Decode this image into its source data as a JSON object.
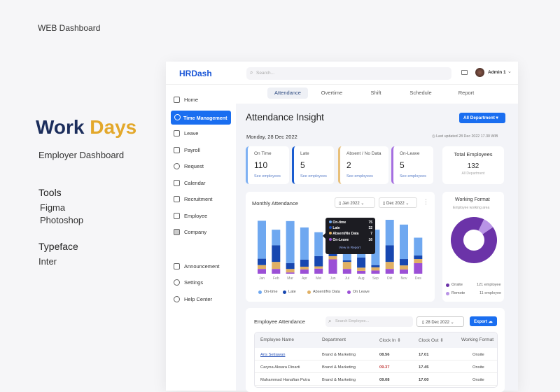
{
  "presentation": {
    "kicker": "WEB Dashboard",
    "title_part1": "Work",
    "title_part2": "Days",
    "subtitle": "Employer Dashboard",
    "tools_heading": "Tools",
    "tools": [
      "Figma",
      "Photoshop"
    ],
    "typeface_heading": "Typeface",
    "typeface": "Inter",
    "colors": {
      "navy": "#1c2e5c",
      "gold": "#e3a82b"
    }
  },
  "header": {
    "logo": "HRDash",
    "search_placeholder": "Search...",
    "user": "Admin 1"
  },
  "tabs": [
    "Attendance",
    "Overtime",
    "Shift",
    "Schedule",
    "Report"
  ],
  "sidebar": {
    "items": [
      {
        "label": "Home",
        "icon": "home-icon"
      },
      {
        "label": "Time Management",
        "icon": "clock-icon",
        "active": true
      },
      {
        "label": "Leave",
        "icon": "briefcase-icon"
      },
      {
        "label": "Payroll",
        "icon": "wallet-icon"
      },
      {
        "label": "Request",
        "icon": "check-circle-icon"
      },
      {
        "label": "Calendar",
        "icon": "calendar-icon"
      },
      {
        "label": "Recruitment",
        "icon": "layers-icon"
      },
      {
        "label": "Employee",
        "icon": "users-icon"
      },
      {
        "label": "Company",
        "icon": "building-icon"
      }
    ],
    "bottom": [
      {
        "label": "Announcement",
        "icon": "megaphone-icon"
      },
      {
        "label": "Settings",
        "icon": "gear-icon"
      },
      {
        "label": "Help Center",
        "icon": "help-icon"
      }
    ]
  },
  "main": {
    "title": "Attendance Insight",
    "dept_button": "All Department",
    "date": "Monday, 28 Dec 2022",
    "last_updated": "Last updated 28 Dec 2022 17.30 WIB",
    "stats": [
      {
        "label": "On Time",
        "value": "110",
        "link": "See employees",
        "color": "#7fb1f3"
      },
      {
        "label": "Late",
        "value": "5",
        "link": "See employees",
        "color": "#1a5cd0"
      },
      {
        "label": "Absent / No Data",
        "value": "2",
        "link": "See employees",
        "color": "#e8c07a"
      },
      {
        "label": "On-Leave",
        "value": "5",
        "link": "See employees",
        "color": "#a56ee0"
      }
    ],
    "total": {
      "label": "Total Employees",
      "value": "132",
      "sub": "All Department"
    }
  },
  "monthly": {
    "title": "Monthly Attendance",
    "from": "Jan 2022",
    "to": "Dec 2022",
    "tooltip": {
      "rows": [
        {
          "label": "On-time",
          "value": "75"
        },
        {
          "label": "Late",
          "value": "32"
        },
        {
          "label": "Absent/No Data",
          "value": "7"
        },
        {
          "label": "On-Leave",
          "value": "16"
        }
      ],
      "link": "View in Report"
    }
  },
  "chart_data": {
    "type": "bar",
    "stacked": true,
    "categories": [
      "Jan",
      "Feb",
      "Mar",
      "Apr",
      "Mei",
      "Jun",
      "Jul",
      "Aug",
      "Sep",
      "Okt",
      "Nov",
      "Des"
    ],
    "series": [
      {
        "name": "On-time",
        "color": "#6fa8f0",
        "values": [
          119,
          49,
          132,
          101,
          75,
          50,
          60,
          50,
          111,
          80,
          108,
          56
        ]
      },
      {
        "name": "Late",
        "color": "#1747b0",
        "values": [
          20,
          52,
          18,
          22,
          32,
          7,
          5,
          32,
          7,
          52,
          20,
          11
        ]
      },
      {
        "name": "Absent/No Data",
        "color": "#e0b064",
        "values": [
          12,
          22,
          11,
          9,
          7,
          10,
          22,
          10,
          10,
          22,
          13,
          13
        ]
      },
      {
        "name": "On Leave",
        "color": "#9b4fd6",
        "values": [
          15,
          15,
          4,
          13,
          16,
          45,
          15,
          9,
          10,
          15,
          13,
          33
        ]
      }
    ],
    "ylim": [
      0,
      180
    ],
    "grid": false,
    "legend": "bottom"
  },
  "working": {
    "title": "Working Format",
    "subtitle": "Employee working area",
    "chart_data": {
      "type": "pie",
      "labels": [
        "Onsite",
        "Remote"
      ],
      "values": [
        121,
        11
      ],
      "value_labels": [
        "121 employee",
        "11 employee"
      ],
      "colors": [
        "#6b33a8",
        "#b994e6"
      ]
    }
  },
  "employee": {
    "title": "Employee Attendance",
    "search_placeholder": "Search Employee...",
    "date": "28 Dec 2022",
    "export": "Export",
    "columns": [
      "Employee Name",
      "Department",
      "Clock In",
      "Clock Out",
      "Working Format"
    ],
    "rows": [
      [
        "Aris Setiawan",
        "Brand & Marketing",
        "08.56",
        "17.01",
        "Onsite"
      ],
      [
        "Caryna Aksara Dinarti",
        "Brand & Marketing",
        "09.37",
        "17.45",
        "Onsite"
      ],
      [
        "Muhammad Hanafian Putra",
        "Brand & Marketing",
        "09.08",
        "17.00",
        "Onsite"
      ]
    ]
  }
}
